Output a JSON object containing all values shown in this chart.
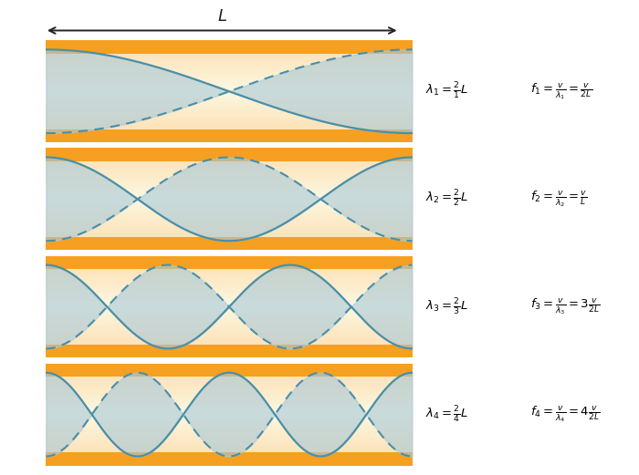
{
  "n_modes": 4,
  "tube_outer_color": "#F5A020",
  "tube_inner_top_color": "#FDE8A0",
  "tube_inner_center_color": "#FDFAF0",
  "wave_color": "#4A8FA8",
  "wave_fill_color": "#A8C8D8",
  "wave_fill_alpha": 0.6,
  "wave_linewidth": 1.6,
  "dashed_linewidth": 1.5,
  "arrow_color": "#222222",
  "background_color": "#FFFFFF",
  "lambda_labels": [
    "\\lambda_1 = \\frac{2}{1}L",
    "\\lambda_2 = \\frac{2}{2}L",
    "\\lambda_3 = \\frac{2}{3}L",
    "\\lambda_4 = \\frac{2}{4}L"
  ],
  "freq_labels": [
    "f_1 = \\frac{v}{\\lambda_1} = \\frac{v}{2L}",
    "f_2 = \\frac{v}{\\lambda_2} = \\frac{v}{L}",
    "f_3 = \\frac{v}{\\lambda_3} = 3\\frac{v}{2L}",
    "f_4 = \\frac{v}{\\lambda_4} = 4\\frac{v}{2L}"
  ]
}
